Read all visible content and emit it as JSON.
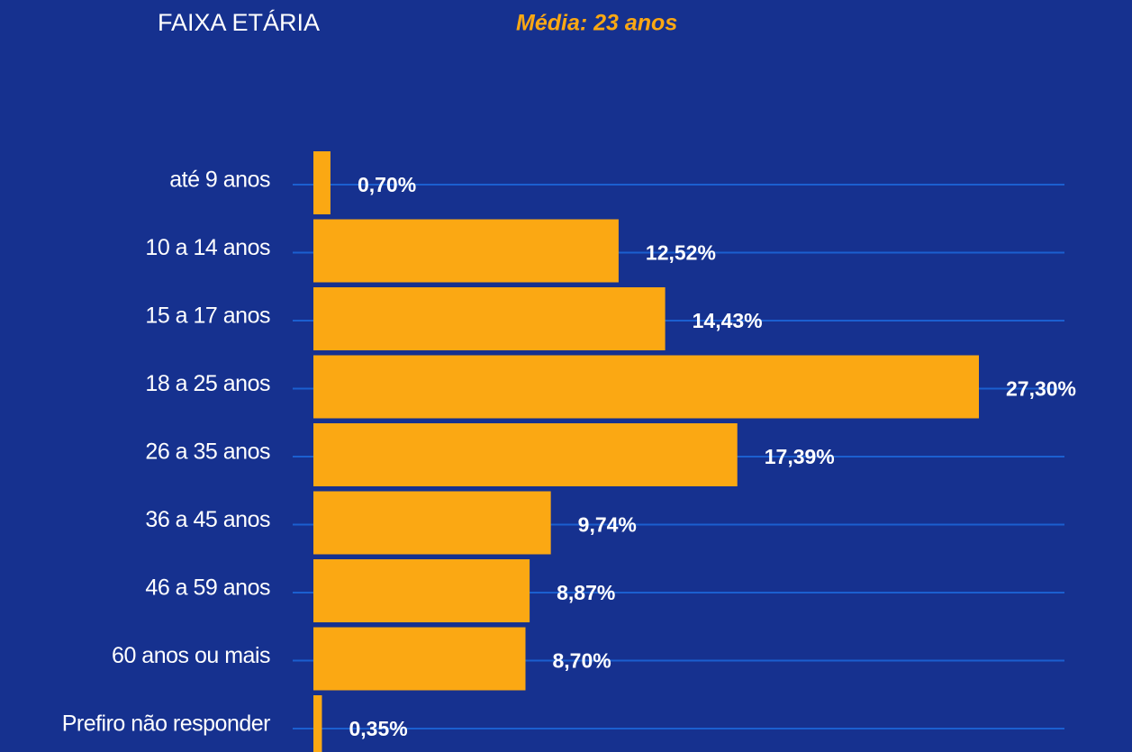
{
  "chart_data": {
    "type": "bar",
    "orientation": "horizontal",
    "title": "FAIXA ETÁRIA",
    "subtitle": "Média: 23 anos",
    "categories": [
      "até 9 anos",
      "10 a 14 anos",
      "15 a 17 anos",
      "18 a 25 anos",
      "26 a 35 anos",
      "36 a 45 anos",
      "46 a 59 anos",
      "60 anos ou mais",
      "Prefiro não responder"
    ],
    "values": [
      0.7,
      12.52,
      14.43,
      27.3,
      17.39,
      9.74,
      8.87,
      8.7,
      0.35
    ],
    "value_labels": [
      "0,70%",
      "12,52%",
      "14,43%",
      "27,30%",
      "17,39%",
      "9,74%",
      "8,87%",
      "8,70%",
      "0,35%"
    ],
    "color": "#fba813"
  }
}
